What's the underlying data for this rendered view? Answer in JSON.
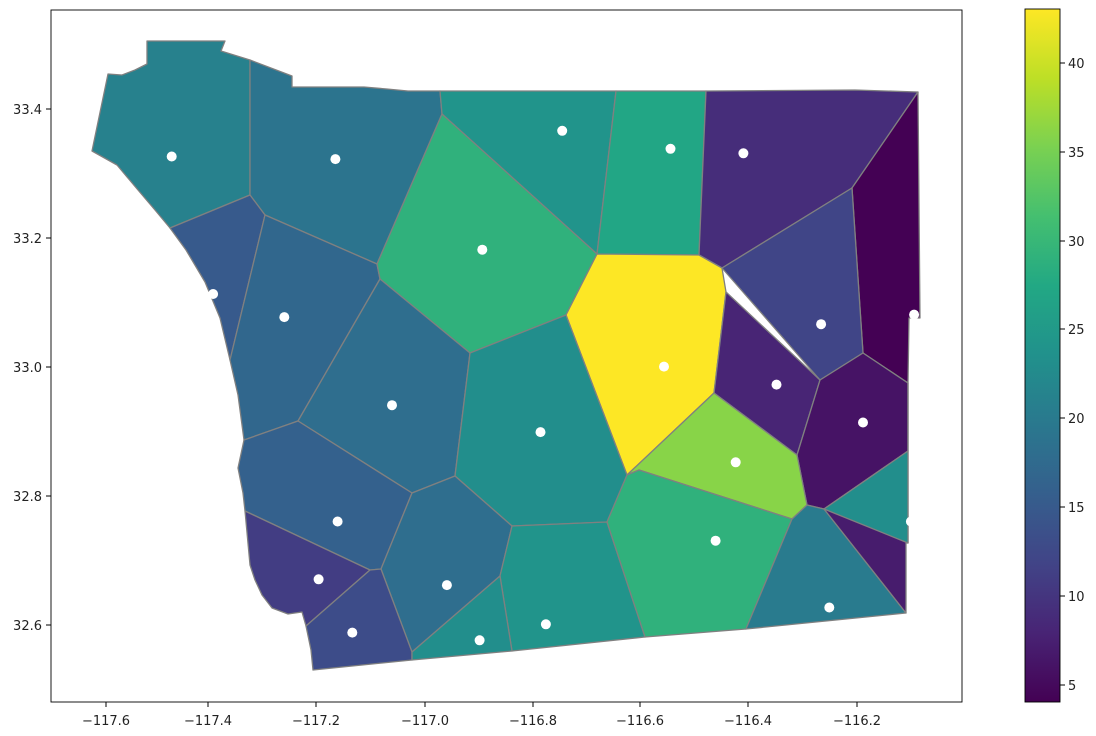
{
  "chart_data": {
    "type": "choropleth",
    "title": "",
    "xlabel": "",
    "ylabel": "",
    "xlim": [
      -117.69,
      -116.015
    ],
    "ylim": [
      32.483,
      33.56
    ],
    "x_ticks": [
      "−117.6",
      "−117.4",
      "−117.2",
      "−117.0",
      "−116.8",
      "−116.6",
      "−116.4",
      "−116.2"
    ],
    "y_ticks": [
      "32.6",
      "32.8",
      "33.0",
      "33.2",
      "33.4"
    ],
    "colorbar": {
      "colormap": "viridis",
      "range": [
        4,
        43
      ],
      "ticks": [
        "5",
        "10",
        "15",
        "20",
        "25",
        "30",
        "35",
        "40"
      ]
    },
    "regions": [
      {
        "id": "r01",
        "value": 21
      },
      {
        "id": "r02",
        "value": 19
      },
      {
        "id": "r03",
        "value": 24
      },
      {
        "id": "r04",
        "value": 27
      },
      {
        "id": "r05",
        "value": 9
      },
      {
        "id": "r06",
        "value": 4
      },
      {
        "id": "r07",
        "value": 15
      },
      {
        "id": "r08",
        "value": 17
      },
      {
        "id": "r09",
        "value": 29
      },
      {
        "id": "r10",
        "value": 43
      },
      {
        "id": "r11",
        "value": 12
      },
      {
        "id": "r12",
        "value": 8
      },
      {
        "id": "r13",
        "value": 18
      },
      {
        "id": "r14",
        "value": 23
      },
      {
        "id": "r15",
        "value": 6
      },
      {
        "id": "r16",
        "value": 36
      },
      {
        "id": "r17",
        "value": 16
      },
      {
        "id": "r18",
        "value": 18
      },
      {
        "id": "r19",
        "value": 24
      },
      {
        "id": "r20",
        "value": 29
      },
      {
        "id": "r21",
        "value": 20
      },
      {
        "id": "r22",
        "value": 7
      },
      {
        "id": "r23",
        "value": 11
      },
      {
        "id": "r24",
        "value": 13
      },
      {
        "id": "r25",
        "value": 23
      },
      {
        "id": "r26",
        "value": 23
      }
    ],
    "points": [
      {
        "lon": -117.468,
        "lat": 33.332
      },
      {
        "lon": -117.167,
        "lat": 33.328
      },
      {
        "lon": -116.75,
        "lat": 33.372
      },
      {
        "lon": -116.551,
        "lat": 33.344
      },
      {
        "lon": -116.417,
        "lat": 33.337
      },
      {
        "lon": -116.897,
        "lat": 33.187
      },
      {
        "lon": -117.392,
        "lat": 33.118
      },
      {
        "lon": -117.261,
        "lat": 33.082
      },
      {
        "lon": -116.274,
        "lat": 33.071
      },
      {
        "lon": -116.103,
        "lat": 33.086
      },
      {
        "lon": -116.563,
        "lat": 33.005
      },
      {
        "lon": -117.063,
        "lat": 32.945
      },
      {
        "lon": -116.356,
        "lat": 32.977
      },
      {
        "lon": -116.197,
        "lat": 32.918
      },
      {
        "lon": -116.79,
        "lat": 32.903
      },
      {
        "lon": -116.431,
        "lat": 32.856
      },
      {
        "lon": -117.163,
        "lat": 32.764
      },
      {
        "lon": -116.109,
        "lat": 32.764
      },
      {
        "lon": -116.468,
        "lat": 32.734
      },
      {
        "lon": -117.198,
        "lat": 32.674
      },
      {
        "lon": -116.962,
        "lat": 32.665
      },
      {
        "lon": -117.136,
        "lat": 32.591
      },
      {
        "lon": -116.902,
        "lat": 32.579
      },
      {
        "lon": -116.78,
        "lat": 32.604
      },
      {
        "lon": -116.259,
        "lat": 32.63
      }
    ]
  }
}
